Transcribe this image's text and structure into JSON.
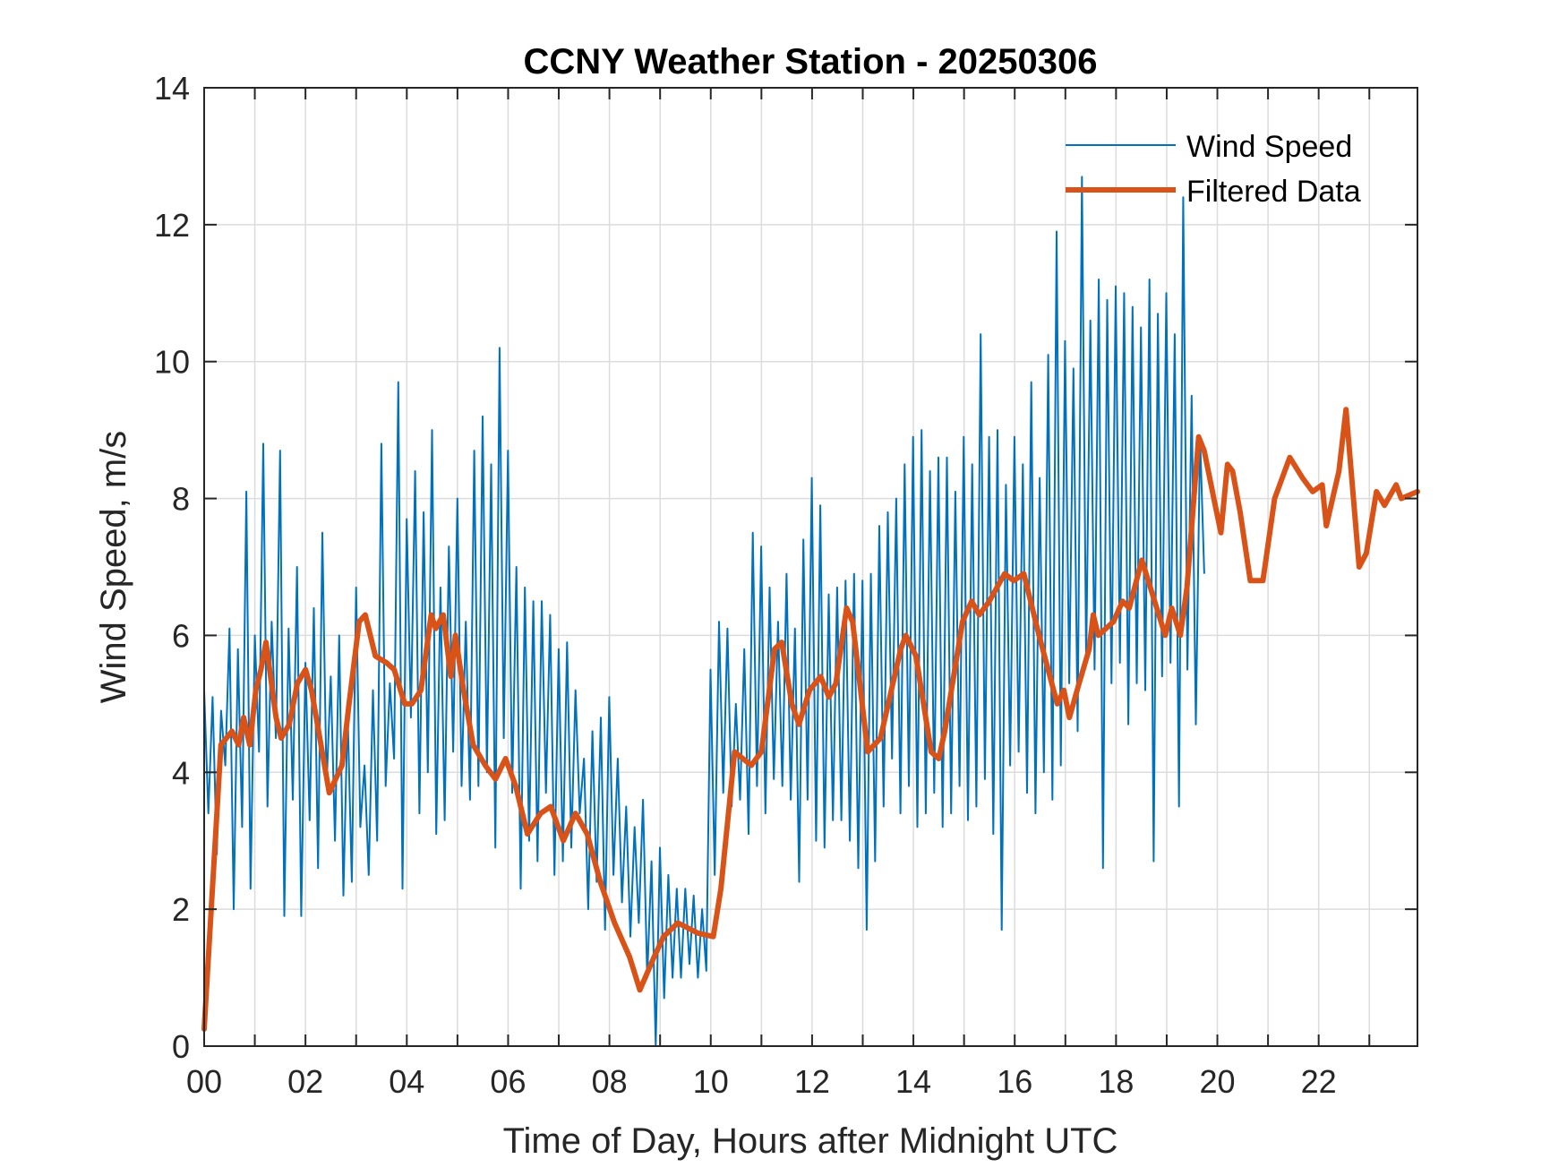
{
  "chart_data": {
    "type": "line",
    "title": "CCNY Weather Station - 20250306",
    "xlabel": "Time of Day, Hours after Midnight UTC",
    "ylabel": "Wind Speed, m/s",
    "xlim": [
      0,
      23.95
    ],
    "ylim": [
      0,
      14
    ],
    "grid": true,
    "legend_placement": "top-right",
    "x_ticks": [
      0,
      1,
      2,
      3,
      4,
      5,
      6,
      7,
      8,
      9,
      10,
      11,
      12,
      13,
      14,
      15,
      16,
      17,
      18,
      19,
      20,
      21,
      22,
      23
    ],
    "x_tick_labels": [
      {
        "value": 0,
        "label": "00"
      },
      {
        "value": 2,
        "label": "02"
      },
      {
        "value": 4,
        "label": "04"
      },
      {
        "value": 6,
        "label": "06"
      },
      {
        "value": 8,
        "label": "08"
      },
      {
        "value": 10,
        "label": "10"
      },
      {
        "value": 12,
        "label": "12"
      },
      {
        "value": 14,
        "label": "14"
      },
      {
        "value": 16,
        "label": "16"
      },
      {
        "value": 18,
        "label": "18"
      },
      {
        "value": 20,
        "label": "20"
      },
      {
        "value": 22,
        "label": "22"
      }
    ],
    "y_ticks": [
      {
        "value": 0,
        "label": "0"
      },
      {
        "value": 2,
        "label": "2"
      },
      {
        "value": 4,
        "label": "4"
      },
      {
        "value": 6,
        "label": "6"
      },
      {
        "value": 8,
        "label": "8"
      },
      {
        "value": 10,
        "label": "10"
      },
      {
        "value": 12,
        "label": "12"
      },
      {
        "value": 14,
        "label": "14"
      }
    ],
    "series": [
      {
        "name": "Wind Speed",
        "color": "#0072BD",
        "x_start": 0,
        "x_step": 0.0833,
        "values": [
          5.2,
          3.4,
          5.1,
          2.8,
          4.9,
          4.1,
          6.1,
          2.0,
          5.8,
          3.2,
          8.1,
          2.3,
          6.0,
          4.3,
          8.8,
          3.5,
          6.2,
          4.5,
          8.7,
          1.9,
          6.1,
          3.6,
          7.0,
          1.9,
          5.6,
          3.3,
          6.4,
          2.6,
          7.5,
          3.8,
          5.4,
          3.0,
          6.0,
          2.2,
          4.9,
          2.4,
          6.7,
          3.2,
          4.1,
          2.5,
          5.2,
          3.0,
          8.8,
          3.8,
          5.3,
          4.2,
          9.7,
          2.3,
          7.7,
          4.8,
          8.4,
          3.4,
          7.8,
          4.0,
          9.0,
          3.1,
          6.7,
          3.3,
          7.3,
          4.3,
          8.0,
          3.8,
          6.2,
          3.6,
          8.7,
          3.8,
          9.2,
          4.0,
          8.5,
          2.9,
          10.2,
          4.5,
          8.7,
          3.7,
          7.0,
          2.3,
          6.7,
          3.0,
          6.5,
          2.7,
          6.5,
          3.7,
          6.3,
          2.5,
          5.8,
          2.7,
          5.9,
          2.9,
          5.2,
          3.4,
          4.2,
          2.0,
          4.6,
          2.4,
          4.8,
          1.7,
          5.1,
          2.5,
          4.2,
          2.1,
          3.5,
          1.6,
          3.2,
          1.8,
          3.6,
          1.0,
          2.7,
          0.0,
          2.9,
          0.7,
          2.5,
          1.0,
          2.3,
          1.0,
          2.3,
          1.2,
          2.2,
          1.0,
          2.0,
          1.1,
          5.5,
          2.5,
          6.2,
          3.7,
          6.1,
          3.5,
          5.0,
          3.6,
          5.8,
          3.1,
          7.5,
          3.8,
          7.3,
          3.4,
          6.7,
          3.9,
          6.2,
          3.8,
          6.9,
          3.6,
          6.1,
          2.4,
          7.4,
          3.6,
          8.3,
          3.0,
          7.9,
          2.9,
          6.6,
          3.3,
          6.7,
          3.3,
          6.8,
          3.0,
          6.9,
          2.6,
          6.8,
          1.7,
          6.9,
          2.7,
          7.6,
          3.5,
          7.8,
          4.2,
          8.0,
          3.4,
          8.5,
          3.8,
          8.9,
          3.2,
          9.0,
          3.4,
          8.4,
          3.7,
          8.6,
          3.2,
          8.6,
          3.4,
          8.1,
          3.8,
          8.9,
          3.3,
          8.5,
          3.5,
          10.4,
          3.9,
          8.9,
          3.1,
          9.0,
          1.7,
          8.2,
          4.1,
          8.9,
          4.3,
          8.5,
          3.7,
          9.7,
          3.4,
          8.3,
          4.0,
          10.1,
          3.6,
          11.9,
          4.1,
          10.3,
          5.3,
          9.9,
          4.6,
          12.7,
          5.6,
          10.6,
          5.5,
          11.2,
          2.6,
          10.9,
          5.3,
          11.1,
          5.6,
          11.0,
          4.7,
          10.8,
          5.3,
          10.5,
          5.2,
          11.2,
          2.7,
          10.7,
          5.4,
          11.0,
          5.6,
          10.4,
          3.5,
          12.4,
          5.5,
          9.5,
          4.7,
          8.9,
          6.9
        ],
        "min": 0.0,
        "max": 12.7
      },
      {
        "name": "Filtered Data",
        "color": "#D95319",
        "x": [
          0.0,
          0.33,
          0.55,
          0.68,
          0.78,
          0.9,
          1.02,
          1.12,
          1.22,
          1.42,
          1.52,
          1.68,
          1.84,
          2.0,
          2.12,
          2.33,
          2.47,
          2.72,
          2.86,
          3.06,
          3.18,
          3.38,
          3.6,
          3.75,
          3.96,
          4.1,
          4.28,
          4.48,
          4.57,
          4.72,
          4.87,
          4.96,
          5.12,
          5.31,
          5.55,
          5.75,
          5.95,
          6.15,
          6.38,
          6.64,
          6.84,
          7.09,
          7.33,
          7.56,
          7.82,
          8.1,
          8.4,
          8.6,
          8.88,
          9.07,
          9.35,
          9.75,
          10.05,
          10.2,
          10.47,
          10.8,
          11.0,
          11.26,
          11.4,
          11.6,
          11.74,
          11.95,
          12.17,
          12.33,
          12.47,
          12.68,
          12.8,
          13.1,
          13.35,
          13.75,
          13.85,
          14.05,
          14.35,
          14.5,
          14.62,
          14.97,
          15.15,
          15.3,
          15.5,
          15.8,
          15.98,
          16.18,
          16.48,
          16.84,
          16.97,
          17.08,
          17.27,
          17.47,
          17.55,
          17.65,
          17.95,
          18.13,
          18.26,
          18.51,
          18.72,
          18.97,
          19.1,
          19.27,
          19.4,
          19.63,
          19.74,
          19.93,
          20.07,
          20.2,
          20.3,
          20.45,
          20.65,
          20.9,
          21.13,
          21.43,
          21.68,
          21.88,
          22.07,
          22.15,
          22.4,
          22.54,
          22.8,
          22.94,
          23.14,
          23.3,
          23.53,
          23.63,
          23.95
        ],
        "values": [
          0.25,
          4.4,
          4.6,
          4.4,
          4.8,
          4.4,
          5.2,
          5.5,
          5.9,
          4.8,
          4.5,
          4.7,
          5.3,
          5.5,
          5.2,
          4.3,
          3.7,
          4.1,
          5.0,
          6.2,
          6.3,
          5.7,
          5.6,
          5.5,
          5.0,
          5.0,
          5.2,
          6.3,
          6.1,
          6.3,
          5.4,
          6.0,
          5.2,
          4.4,
          4.1,
          3.9,
          4.2,
          3.8,
          3.1,
          3.4,
          3.5,
          3.0,
          3.4,
          3.1,
          2.4,
          1.8,
          1.3,
          0.82,
          1.3,
          1.6,
          1.8,
          1.65,
          1.6,
          2.3,
          4.3,
          4.1,
          4.3,
          5.8,
          5.9,
          5.0,
          4.7,
          5.2,
          5.4,
          5.1,
          5.3,
          6.4,
          6.2,
          4.3,
          4.5,
          5.8,
          6.0,
          5.7,
          4.3,
          4.2,
          4.6,
          6.2,
          6.5,
          6.3,
          6.5,
          6.9,
          6.8,
          6.9,
          6.0,
          5.0,
          5.2,
          4.8,
          5.3,
          5.8,
          6.3,
          6.0,
          6.2,
          6.5,
          6.4,
          7.1,
          6.6,
          6.0,
          6.4,
          6.0,
          6.7,
          8.9,
          8.7,
          8.0,
          7.5,
          8.5,
          8.4,
          7.8,
          6.8,
          6.8,
          8.0,
          8.6,
          8.3,
          8.1,
          8.2,
          7.6,
          8.4,
          9.3,
          7.0,
          7.2,
          8.1,
          7.9,
          8.2,
          8.0,
          8.1
        ]
      }
    ]
  }
}
